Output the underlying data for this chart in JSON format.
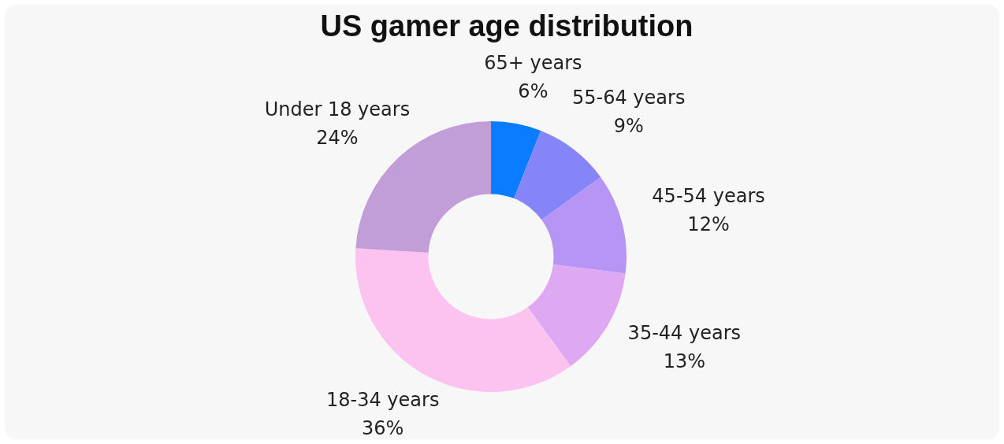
{
  "chart_data": {
    "type": "donut",
    "title": "US gamer age distribution",
    "categories": [
      "65+ years",
      "55-64 years",
      "45-54 years",
      "35-44 years",
      "18-34 years",
      "Under 18 years"
    ],
    "values": [
      6,
      9,
      12,
      13,
      36,
      24
    ],
    "colors": [
      "#0a7cff",
      "#8585f8",
      "#b795f5",
      "#dfa8f2",
      "#fcc3f0",
      "#c29ed8"
    ],
    "value_labels": [
      "6%",
      "9%",
      "12%",
      "13%",
      "36%",
      "24%"
    ],
    "legend": false
  }
}
